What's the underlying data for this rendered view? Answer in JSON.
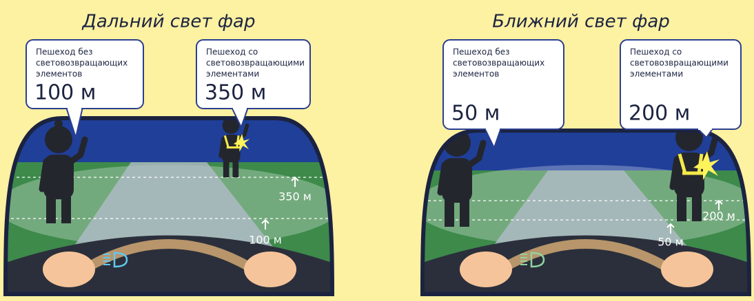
{
  "panels": [
    {
      "title": "Дальний свет фар",
      "callouts": [
        {
          "lines": [
            "Пешеход без",
            "световозвращающих",
            "элементов"
          ],
          "distance": "100 м"
        },
        {
          "lines": [
            "Пешеход со",
            "световозвращающими",
            "элементами"
          ],
          "distance": "350 м"
        }
      ],
      "markers": [
        "350 м",
        "100 м"
      ]
    },
    {
      "title": "Ближний свет фар",
      "callouts": [
        {
          "lines": [
            "Пешеход без",
            "световозвращающих",
            "элементов"
          ],
          "distance": "50 м"
        },
        {
          "lines": [
            "Пешеход со",
            "световозвращающими",
            "элементами"
          ],
          "distance": "200 м"
        }
      ],
      "markers": [
        "200 м",
        "50 м"
      ]
    }
  ]
}
